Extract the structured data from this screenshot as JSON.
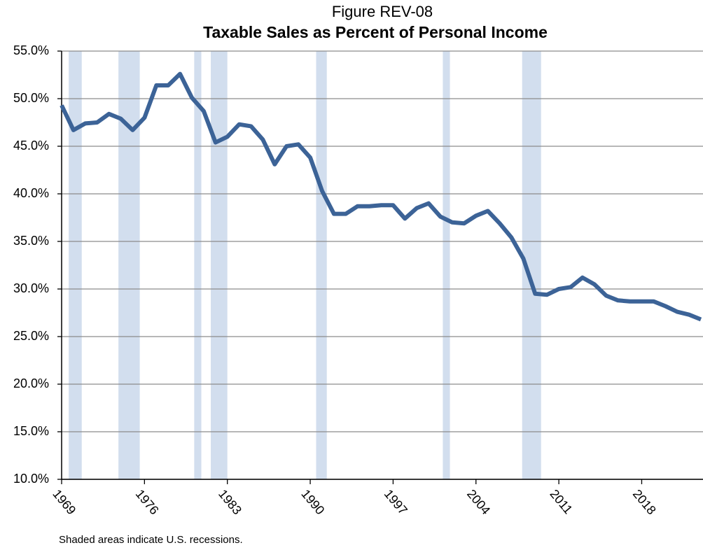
{
  "chart_data": {
    "type": "line",
    "title": "Figure REV-08",
    "subtitle": "Taxable Sales as Percent of Personal Income",
    "footnote": "Shaded areas indicate U.S. recessions.",
    "x": [
      1969,
      1970,
      1971,
      1972,
      1973,
      1974,
      1975,
      1976,
      1977,
      1978,
      1979,
      1980,
      1981,
      1982,
      1983,
      1984,
      1985,
      1986,
      1987,
      1988,
      1989,
      1990,
      1991,
      1992,
      1993,
      1994,
      1995,
      1996,
      1997,
      1998,
      1999,
      2000,
      2001,
      2002,
      2003,
      2004,
      2005,
      2006,
      2007,
      2008,
      2009,
      2010,
      2011,
      2012,
      2013,
      2014,
      2015,
      2016,
      2017,
      2018,
      2019,
      2020,
      2021,
      2022,
      2023
    ],
    "values": [
      49.3,
      46.7,
      47.4,
      47.5,
      48.4,
      47.9,
      46.7,
      48.0,
      51.4,
      51.4,
      52.6,
      50.1,
      48.7,
      45.4,
      46.0,
      47.3,
      47.1,
      45.7,
      43.1,
      45.0,
      45.2,
      43.8,
      40.3,
      37.9,
      37.9,
      38.7,
      38.7,
      38.8,
      38.8,
      37.4,
      38.5,
      39.0,
      37.6,
      37.0,
      36.9,
      37.7,
      38.2,
      36.9,
      35.4,
      33.2,
      29.5,
      29.4,
      30.0,
      30.2,
      31.2,
      30.5,
      29.3,
      28.8,
      28.7,
      28.7,
      28.7,
      28.2,
      27.6,
      27.3,
      26.8
    ],
    "color": "#3c6397",
    "recessions": [
      [
        1969.6,
        1970.7
      ],
      [
        1973.8,
        1975.6
      ],
      [
        1980.2,
        1980.8
      ],
      [
        1981.6,
        1983.0
      ],
      [
        1990.5,
        1991.4
      ],
      [
        2001.2,
        2001.8
      ],
      [
        2007.9,
        2009.5
      ]
    ],
    "recession_color": "#d2deee",
    "xlim": [
      1969,
      2023
    ],
    "xticks": [
      1969,
      1976,
      1983,
      1990,
      1997,
      2004,
      2011,
      2018
    ],
    "ylim": [
      10,
      55
    ],
    "yticks": [
      {
        "value": 10,
        "label": "10.0%"
      },
      {
        "value": 15,
        "label": "15.0%"
      },
      {
        "value": 20,
        "label": "20.0%"
      },
      {
        "value": 25,
        "label": "25.0%"
      },
      {
        "value": 30,
        "label": "30.0%"
      },
      {
        "value": 35,
        "label": "35.0%"
      },
      {
        "value": 40,
        "label": "40.0%"
      },
      {
        "value": 45,
        "label": "45.0%"
      },
      {
        "value": 50,
        "label": "50.0%"
      },
      {
        "value": 55,
        "label": "55.0%"
      }
    ],
    "grid": true
  }
}
